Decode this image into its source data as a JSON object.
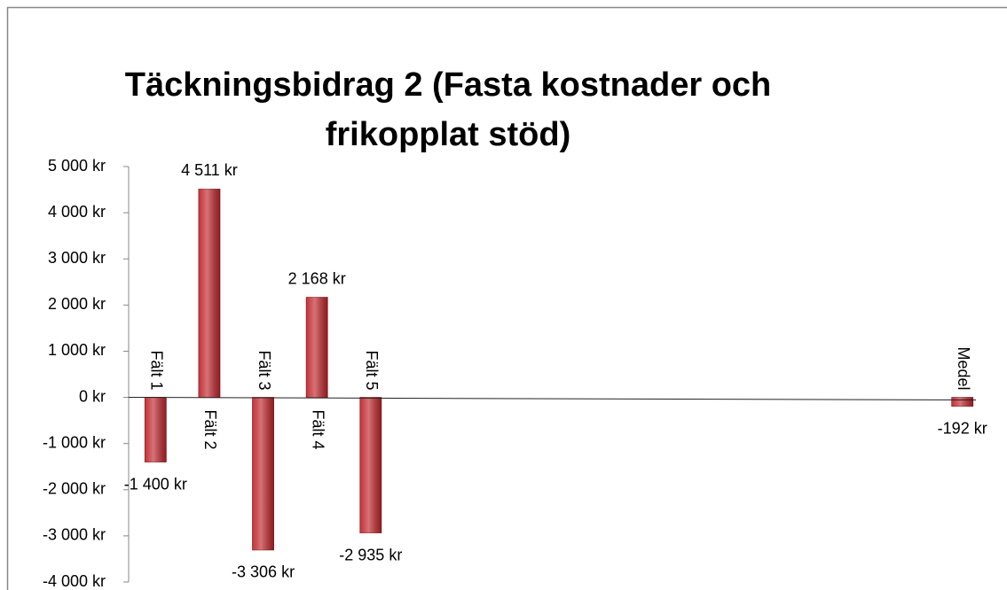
{
  "chart_data": {
    "type": "bar",
    "title": "Täckningsbidrag 2 (Fasta kostnader och frikopplat stöd)",
    "categories": [
      "Fält 1",
      "Fält 2",
      "Fält 3",
      "Fält 4",
      "Fält 5",
      null,
      null,
      null,
      null,
      null,
      null,
      null,
      null,
      null,
      null,
      "Medel"
    ],
    "values": [
      -1400,
      4511,
      -3306,
      2168,
      -2935,
      null,
      null,
      null,
      null,
      null,
      null,
      null,
      null,
      null,
      null,
      -192
    ],
    "value_labels": [
      "-1 400 kr",
      "4 511 kr",
      "-3 306 kr",
      "2 168 kr",
      "-2 935 kr",
      null,
      null,
      null,
      null,
      null,
      null,
      null,
      null,
      null,
      null,
      "-192 kr"
    ],
    "color": "#c0272d",
    "ylim": [
      -4000,
      5000
    ],
    "yticks": [
      {
        "value": -4000,
        "label": "-4 000 kr"
      },
      {
        "value": -3000,
        "label": "-3 000 kr"
      },
      {
        "value": -2000,
        "label": "-2 000 kr"
      },
      {
        "value": -1000,
        "label": "-1 000 kr"
      },
      {
        "value": 0,
        "label": "0 kr"
      },
      {
        "value": 1000,
        "label": "1 000 kr"
      },
      {
        "value": 2000,
        "label": "2 000 kr"
      },
      {
        "value": 3000,
        "label": "3 000 kr"
      },
      {
        "value": 4000,
        "label": "4 000 kr"
      },
      {
        "value": 5000,
        "label": "5 000 kr"
      }
    ],
    "grid": false
  }
}
